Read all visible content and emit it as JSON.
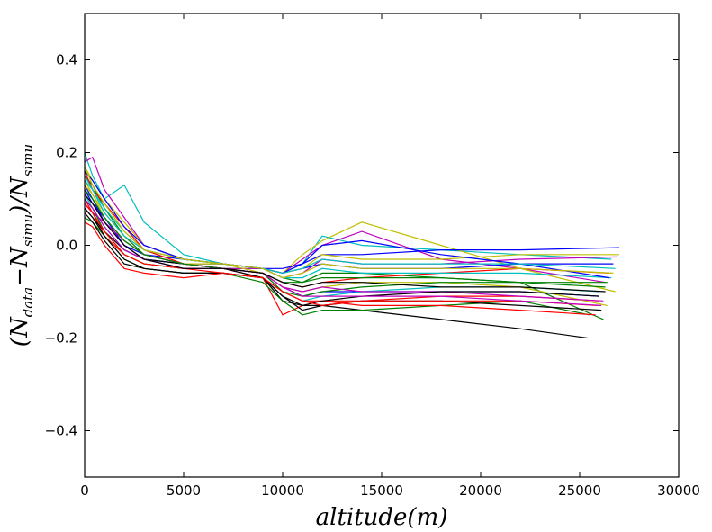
{
  "chart_data": {
    "type": "line",
    "title": "",
    "xlabel_text": "altitude(m)",
    "ylabel": {
      "main_open": "(N",
      "sub1": "data",
      "minus": "−N",
      "sub2": "simu",
      "main_mid": ")/N",
      "sub3": "simu"
    },
    "xlim": [
      0,
      30000
    ],
    "ylim": [
      -0.5,
      0.5
    ],
    "xticks": [
      0,
      5000,
      10000,
      15000,
      20000,
      25000,
      30000
    ],
    "xtick_labels": [
      "0",
      "5000",
      "10000",
      "15000",
      "20000",
      "25000",
      "30000"
    ],
    "yticks": [
      0.4,
      0.2,
      0.0,
      -0.2,
      -0.4
    ],
    "ytick_labels": [
      "0.4",
      "0.2",
      "0.0",
      "−0.2",
      "−0.4"
    ],
    "grid": false,
    "legend": "none",
    "colors": [
      "#0000ff",
      "#008000",
      "#ff0000",
      "#00bfbf",
      "#bf00bf",
      "#bfbf00",
      "#000000"
    ],
    "series": [
      {
        "x": [
          0,
          400,
          1000,
          2000,
          3000,
          5000,
          7000,
          9000,
          10000,
          11000,
          12000,
          14000,
          18000,
          22000,
          26000
        ],
        "values": [
          0.12,
          0.1,
          0.06,
          0.0,
          -0.03,
          -0.04,
          -0.05,
          -0.06,
          -0.09,
          -0.11,
          -0.1,
          -0.1,
          -0.1,
          -0.1,
          -0.11
        ]
      },
      {
        "x": [
          0,
          400,
          1000,
          2000,
          3000,
          5000,
          7000,
          9000,
          10000,
          11000,
          12000,
          14000,
          18000,
          22000,
          26200
        ],
        "values": [
          0.15,
          0.13,
          0.08,
          0.02,
          -0.02,
          -0.04,
          -0.05,
          -0.05,
          -0.07,
          -0.08,
          -0.06,
          -0.06,
          -0.07,
          -0.08,
          -0.16
        ]
      },
      {
        "x": [
          0,
          400,
          1000,
          2000,
          3000,
          5000,
          7000,
          9000,
          10000,
          11000,
          12000,
          14000,
          18000,
          22000,
          26000
        ],
        "values": [
          0.1,
          0.07,
          0.02,
          -0.02,
          -0.04,
          -0.05,
          -0.05,
          -0.07,
          -0.15,
          -0.13,
          -0.12,
          -0.12,
          -0.11,
          -0.11,
          -0.12
        ]
      },
      {
        "x": [
          0,
          400,
          1000,
          2000,
          3000,
          5000,
          7000,
          9000,
          10000,
          11000,
          12000,
          14000,
          18000,
          22000,
          26600
        ],
        "values": [
          0.2,
          0.15,
          0.1,
          0.13,
          0.05,
          -0.02,
          -0.04,
          -0.05,
          -0.06,
          -0.04,
          0.02,
          0.0,
          -0.01,
          -0.02,
          -0.03
        ]
      },
      {
        "x": [
          0,
          400,
          1000,
          2000,
          3000,
          5000,
          7000,
          9000,
          10000,
          11000,
          12000,
          14000,
          18000,
          22000,
          26300
        ],
        "values": [
          0.18,
          0.19,
          0.12,
          0.06,
          0.0,
          -0.03,
          -0.04,
          -0.05,
          -0.06,
          -0.03,
          0.0,
          0.03,
          -0.03,
          -0.05,
          -0.08
        ]
      },
      {
        "x": [
          0,
          400,
          1000,
          2000,
          3000,
          5000,
          7000,
          9000,
          10000,
          11000,
          12000,
          14000,
          18000,
          22000,
          26800
        ],
        "values": [
          0.17,
          0.14,
          0.1,
          0.05,
          0.0,
          -0.03,
          -0.04,
          -0.05,
          -0.06,
          -0.02,
          0.01,
          0.05,
          0.0,
          -0.05,
          -0.1
        ]
      },
      {
        "x": [
          0,
          400,
          1000,
          2000,
          3000,
          5000,
          7000,
          9000,
          10000,
          11000,
          12000,
          14000,
          18000,
          22000,
          25400
        ],
        "values": [
          0.08,
          0.06,
          0.03,
          -0.01,
          -0.03,
          -0.04,
          -0.05,
          -0.07,
          -0.12,
          -0.13,
          -0.13,
          -0.14,
          -0.16,
          -0.18,
          -0.2
        ]
      },
      {
        "x": [
          0,
          400,
          1000,
          2000,
          3000,
          5000,
          7000,
          9000,
          10000,
          11000,
          12000,
          14000,
          18000,
          22000,
          27000
        ],
        "values": [
          0.13,
          0.1,
          0.05,
          0.0,
          -0.02,
          -0.03,
          -0.04,
          -0.05,
          -0.05,
          -0.04,
          -0.02,
          -0.02,
          -0.01,
          -0.01,
          -0.005
        ]
      },
      {
        "x": [
          0,
          400,
          1000,
          2000,
          3000,
          5000,
          7000,
          9000,
          10000,
          11000,
          12000,
          14000,
          18000,
          22000,
          25500
        ],
        "values": [
          0.06,
          0.05,
          0.02,
          -0.03,
          -0.05,
          -0.06,
          -0.06,
          -0.08,
          -0.12,
          -0.15,
          -0.14,
          -0.14,
          -0.13,
          -0.12,
          -0.15
        ]
      },
      {
        "x": [
          0,
          400,
          1000,
          2000,
          3000,
          5000,
          7000,
          9000,
          10000,
          11000,
          12000,
          14000,
          18000,
          22000,
          26500
        ],
        "values": [
          0.16,
          0.12,
          0.09,
          0.04,
          -0.01,
          -0.04,
          -0.05,
          -0.06,
          -0.08,
          -0.09,
          -0.08,
          -0.07,
          -0.06,
          -0.05,
          -0.06
        ]
      },
      {
        "x": [
          0,
          400,
          1000,
          2000,
          3000,
          5000,
          7000,
          9000,
          10000,
          11000,
          12000,
          14000,
          18000,
          22000,
          26000
        ],
        "values": [
          0.11,
          0.08,
          0.04,
          -0.01,
          -0.03,
          -0.05,
          -0.05,
          -0.06,
          -0.1,
          -0.12,
          -0.11,
          -0.1,
          -0.09,
          -0.09,
          -0.1
        ]
      },
      {
        "x": [
          0,
          400,
          1000,
          2000,
          3000,
          5000,
          7000,
          9000,
          10000,
          11000,
          12000,
          14000,
          18000,
          22000,
          26900
        ],
        "values": [
          0.09,
          0.07,
          0.05,
          0.01,
          -0.02,
          -0.04,
          -0.05,
          -0.05,
          -0.07,
          -0.06,
          -0.03,
          -0.04,
          -0.04,
          -0.03,
          -0.025
        ]
      },
      {
        "x": [
          0,
          400,
          1000,
          2000,
          3000,
          5000,
          7000,
          9000,
          10000,
          11000,
          12000,
          14000,
          18000,
          22000,
          26400
        ],
        "values": [
          0.14,
          0.11,
          0.07,
          0.02,
          -0.01,
          -0.03,
          -0.04,
          -0.06,
          -0.09,
          -0.1,
          -0.09,
          -0.08,
          -0.08,
          -0.09,
          -0.13
        ]
      },
      {
        "x": [
          0,
          400,
          1000,
          2000,
          3000,
          5000,
          7000,
          9000,
          10000,
          11000,
          12000,
          14000,
          18000,
          22000,
          26100
        ],
        "values": [
          0.07,
          0.05,
          0.01,
          -0.04,
          -0.05,
          -0.06,
          -0.06,
          -0.07,
          -0.11,
          -0.14,
          -0.13,
          -0.12,
          -0.12,
          -0.13,
          -0.14
        ]
      },
      {
        "x": [
          0,
          400,
          1000,
          2000,
          3000,
          5000,
          7000,
          9000,
          10000,
          11000,
          12000,
          14000,
          18000,
          22000,
          26700
        ],
        "values": [
          0.12,
          0.09,
          0.06,
          0.01,
          -0.02,
          -0.04,
          -0.04,
          -0.05,
          -0.06,
          -0.05,
          -0.04,
          -0.05,
          -0.05,
          -0.04,
          -0.04
        ]
      },
      {
        "x": [
          0,
          400,
          1000,
          2000,
          3000,
          5000,
          7000,
          9000,
          10000,
          11000,
          12000,
          14000,
          18000,
          22000,
          26300
        ],
        "values": [
          0.1,
          0.08,
          0.03,
          -0.02,
          -0.04,
          -0.05,
          -0.05,
          -0.06,
          -0.1,
          -0.11,
          -0.1,
          -0.09,
          -0.08,
          -0.08,
          -0.09
        ]
      },
      {
        "x": [
          0,
          400,
          1000,
          2000,
          3000,
          5000,
          7000,
          9000,
          10000,
          11000,
          12000,
          14000,
          18000,
          22000,
          25800
        ],
        "values": [
          0.05,
          0.04,
          0.0,
          -0.05,
          -0.06,
          -0.07,
          -0.06,
          -0.07,
          -0.1,
          -0.12,
          -0.12,
          -0.13,
          -0.13,
          -0.14,
          -0.15
        ]
      },
      {
        "x": [
          0,
          400,
          1000,
          2000,
          3000,
          5000,
          7000,
          9000,
          10000,
          11000,
          12000,
          14000,
          18000,
          22000,
          26600
        ],
        "values": [
          0.15,
          0.12,
          0.08,
          0.03,
          -0.01,
          -0.03,
          -0.04,
          -0.05,
          -0.07,
          -0.07,
          -0.05,
          -0.06,
          -0.06,
          -0.06,
          -0.07
        ]
      },
      {
        "x": [
          0,
          400,
          1000,
          2000,
          3000,
          5000,
          7000,
          9000,
          10000,
          11000,
          12000,
          14000,
          18000,
          22000,
          26200
        ],
        "values": [
          0.11,
          0.09,
          0.05,
          0.0,
          -0.03,
          -0.05,
          -0.05,
          -0.06,
          -0.09,
          -0.1,
          -0.09,
          -0.1,
          -0.1,
          -0.11,
          -0.12
        ]
      },
      {
        "x": [
          0,
          400,
          1000,
          2000,
          3000,
          5000,
          7000,
          9000,
          10000,
          11000,
          12000,
          14000,
          18000,
          22000,
          27000
        ],
        "values": [
          0.13,
          0.11,
          0.06,
          0.01,
          -0.02,
          -0.04,
          -0.04,
          -0.05,
          -0.06,
          -0.05,
          -0.02,
          -0.03,
          -0.03,
          -0.02,
          -0.02
        ]
      },
      {
        "x": [
          0,
          400,
          1000,
          2000,
          3000,
          5000,
          7000,
          9000,
          10000,
          11000,
          12000,
          14000,
          18000,
          22000,
          26000
        ],
        "values": [
          0.08,
          0.06,
          0.02,
          -0.03,
          -0.05,
          -0.06,
          -0.06,
          -0.07,
          -0.11,
          -0.13,
          -0.12,
          -0.11,
          -0.1,
          -0.1,
          -0.11
        ]
      },
      {
        "x": [
          0,
          400,
          1000,
          2000,
          3000,
          5000,
          7000,
          9000,
          10000,
          11000,
          12000,
          14000,
          18000,
          22000,
          26500
        ],
        "values": [
          0.16,
          0.14,
          0.1,
          0.04,
          0.0,
          -0.03,
          -0.04,
          -0.05,
          -0.06,
          -0.04,
          0.0,
          0.01,
          -0.02,
          -0.04,
          -0.07
        ]
      },
      {
        "x": [
          0,
          400,
          1000,
          2000,
          3000,
          5000,
          7000,
          9000,
          10000,
          11000,
          12000,
          14000,
          18000,
          22000,
          26400
        ],
        "values": [
          0.12,
          0.1,
          0.06,
          0.01,
          -0.02,
          -0.04,
          -0.05,
          -0.06,
          -0.08,
          -0.08,
          -0.07,
          -0.07,
          -0.07,
          -0.08,
          -0.08
        ]
      },
      {
        "x": [
          0,
          400,
          1000,
          2000,
          3000,
          5000,
          7000,
          9000,
          10000,
          11000,
          12000,
          14000,
          18000,
          22000,
          25900
        ],
        "values": [
          0.09,
          0.07,
          0.03,
          -0.02,
          -0.04,
          -0.05,
          -0.06,
          -0.07,
          -0.1,
          -0.12,
          -0.13,
          -0.12,
          -0.12,
          -0.12,
          -0.13
        ]
      },
      {
        "x": [
          0,
          400,
          1000,
          2000,
          3000,
          5000,
          7000,
          9000,
          10000,
          11000,
          12000,
          14000,
          18000,
          22000,
          26800
        ],
        "values": [
          0.14,
          0.12,
          0.07,
          0.02,
          -0.01,
          -0.03,
          -0.04,
          -0.05,
          -0.06,
          -0.05,
          -0.03,
          -0.04,
          -0.04,
          -0.04,
          -0.05
        ]
      },
      {
        "x": [
          0,
          400,
          1000,
          2000,
          3000,
          5000,
          7000,
          9000,
          10000,
          11000,
          12000,
          14000,
          18000,
          22000,
          26100
        ],
        "values": [
          0.1,
          0.08,
          0.04,
          -0.01,
          -0.03,
          -0.05,
          -0.05,
          -0.06,
          -0.09,
          -0.11,
          -0.11,
          -0.11,
          -0.11,
          -0.12,
          -0.13
        ]
      },
      {
        "x": [
          0,
          400,
          1000,
          2000,
          3000,
          5000,
          7000,
          9000,
          10000,
          11000,
          12000,
          14000,
          18000,
          22000,
          26700
        ],
        "values": [
          0.17,
          0.13,
          0.09,
          0.03,
          -0.01,
          -0.03,
          -0.04,
          -0.05,
          -0.07,
          -0.06,
          -0.04,
          -0.05,
          -0.05,
          -0.05,
          -0.06
        ]
      },
      {
        "x": [
          0,
          400,
          1000,
          2000,
          3000,
          5000,
          7000,
          9000,
          10000,
          11000,
          12000,
          14000,
          18000,
          22000,
          26300
        ],
        "values": [
          0.11,
          0.09,
          0.05,
          0.0,
          -0.03,
          -0.05,
          -0.05,
          -0.06,
          -0.08,
          -0.09,
          -0.08,
          -0.08,
          -0.09,
          -0.09,
          -0.1
        ]
      }
    ]
  }
}
